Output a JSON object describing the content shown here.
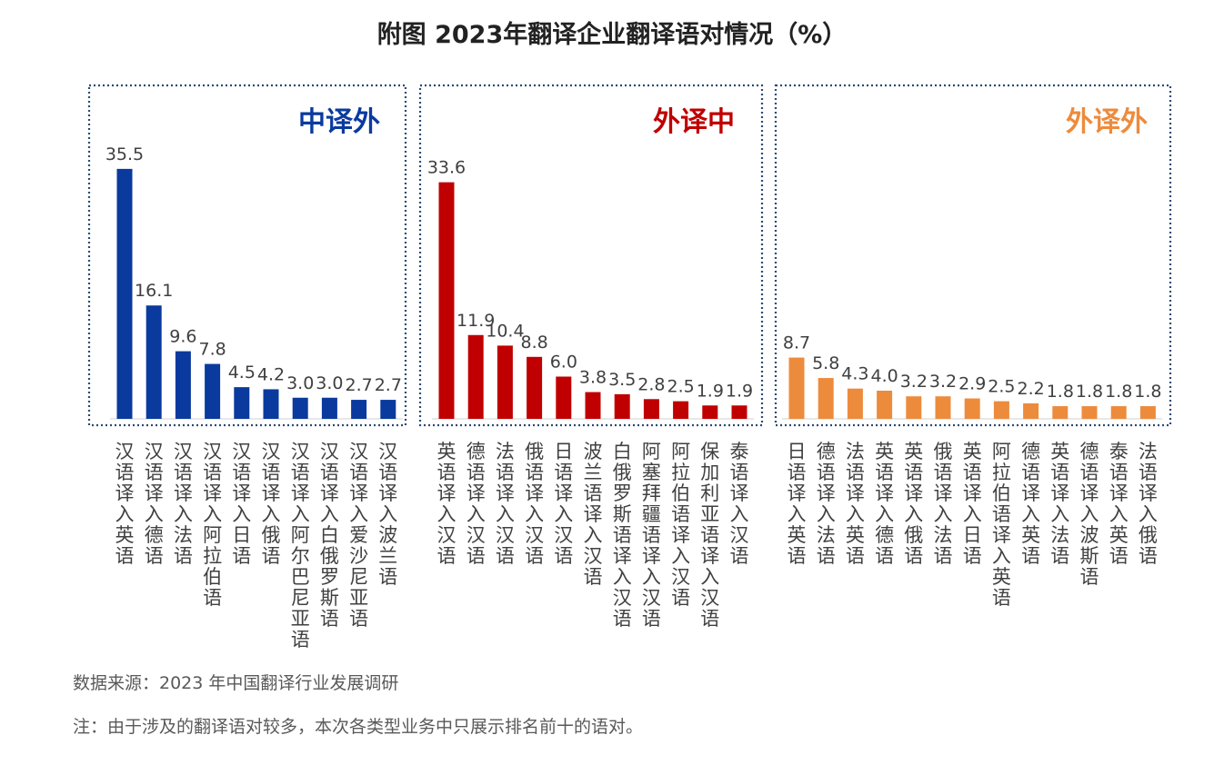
{
  "title": "附图  2023年翻译企业翻译语对情况（%）",
  "source": "数据来源：2023 年中国翻译行业发展调研",
  "footnote": "注：由于涉及的翻译语对较多，本次各类型业务中只展示排名前十的语对。",
  "chart_data": [
    {
      "type": "bar",
      "title": "中译外",
      "color": "#0a3a9e",
      "categories": [
        "汉语译入英语",
        "汉语译入德语",
        "汉语译入法语",
        "汉语译入阿拉伯语",
        "汉语译入日语",
        "汉语译入俄语",
        "汉语译入阿尔巴尼亚语",
        "汉语译入白俄罗斯语",
        "汉语译入爱沙尼亚语",
        "汉语译入波兰语"
      ],
      "values": [
        35.5,
        16.1,
        9.6,
        7.8,
        4.5,
        4.2,
        3.0,
        3.0,
        2.7,
        2.7
      ],
      "value_labels": [
        "35.5",
        "16.1",
        "9.6",
        "7.8",
        "4.5",
        "4.2",
        "3.0",
        "3.0",
        "2.7",
        "2.7"
      ],
      "ylim": [
        0,
        40
      ]
    },
    {
      "type": "bar",
      "title": "外译中",
      "color": "#c00000",
      "categories": [
        "英语译入汉语",
        "德语译入汉语",
        "法语译入汉语",
        "俄语译入汉语",
        "日语译入汉语",
        "波兰语译入汉语",
        "白俄罗斯语译入汉语",
        "阿塞拜疆语译入汉语",
        "阿拉伯语译入汉语",
        "保加利亚语译入汉语",
        "泰语译入汉语"
      ],
      "values": [
        33.6,
        11.9,
        10.4,
        8.8,
        6.0,
        3.8,
        3.5,
        2.8,
        2.5,
        1.9,
        1.9
      ],
      "value_labels": [
        "33.6",
        "11.9",
        "10.4",
        "8.8",
        "6.0",
        "3.8",
        "3.5",
        "2.8",
        "2.5",
        "1.9",
        "1.9"
      ],
      "ylim": [
        0,
        40
      ]
    },
    {
      "type": "bar",
      "title": "外译外",
      "color": "#ed8b3c",
      "categories": [
        "日语译入英语",
        "德语译入法语",
        "法语译入英语",
        "英语译入德语",
        "英语译入俄语",
        "俄语译入法语",
        "英语译入日语",
        "阿拉伯语译入英语",
        "德语译入英语",
        "英语译入法语",
        "德语译入波斯语",
        "泰语译入英语",
        "法语译入俄语"
      ],
      "values": [
        8.7,
        5.8,
        4.3,
        4.0,
        3.2,
        3.2,
        2.9,
        2.5,
        2.2,
        1.8,
        1.8,
        1.8,
        1.8
      ],
      "value_labels": [
        "8.7",
        "5.8",
        "4.3",
        "4.0",
        "3.2",
        "3.2",
        "2.9",
        "2.5",
        "2.2",
        "1.8",
        "1.8",
        "1.8",
        "1.8"
      ],
      "ylim": [
        0,
        40
      ]
    }
  ]
}
